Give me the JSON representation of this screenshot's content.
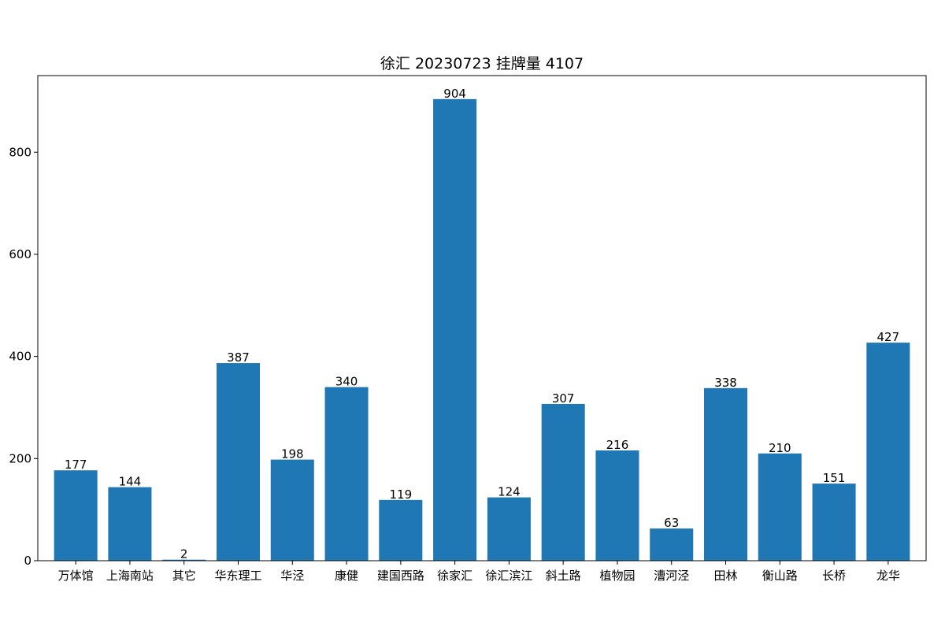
{
  "chart_data": {
    "type": "bar",
    "title": "徐汇 20230723 挂牌量 4107",
    "xlabel": "",
    "ylabel": "",
    "ylim": [
      0,
      950
    ],
    "yticks": [
      0,
      200,
      400,
      600,
      800
    ],
    "grid": false,
    "bar_color": "#1f77b4",
    "categories": [
      "万体馆",
      "上海南站",
      "其它",
      "华东理工",
      "华泾",
      "康健",
      "建国西路",
      "徐家汇",
      "徐汇滨江",
      "斜土路",
      "植物园",
      "漕河泾",
      "田林",
      "衡山路",
      "长桥",
      "龙华"
    ],
    "values": [
      177,
      144,
      2,
      387,
      198,
      340,
      119,
      904,
      124,
      307,
      216,
      63,
      338,
      210,
      151,
      427
    ]
  }
}
